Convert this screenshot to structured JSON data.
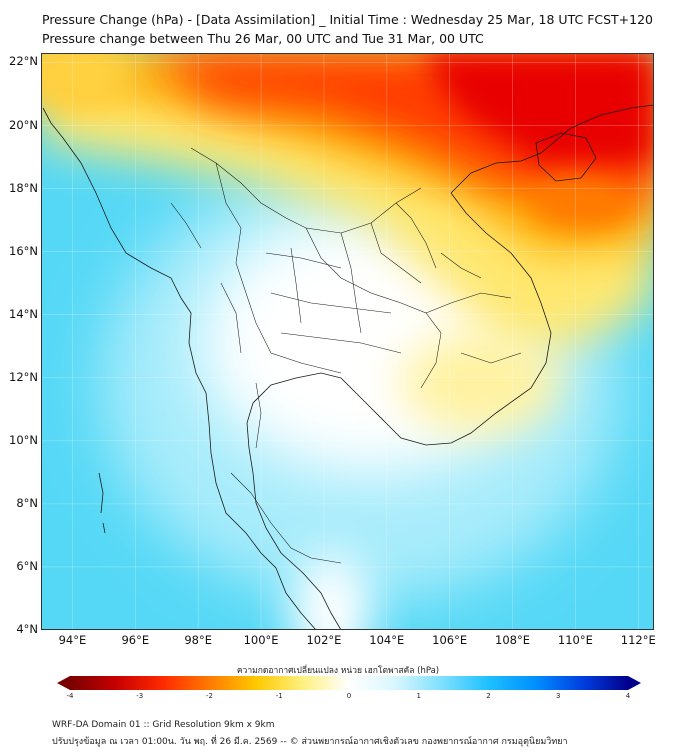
{
  "title_line1": "Pressure Change (hPa) - [Data Assimilation] _ Initial Time : Wednesday 25 Mar, 18 UTC FCST+120",
  "title_line2": "Pressure change between Thu 26 Mar, 00 UTC and Tue 31 Mar, 00 UTC",
  "map": {
    "lat_range": [
      4,
      22.3
    ],
    "lon_range": [
      93,
      112.5
    ],
    "grid": "on",
    "lat_ticks": [
      {
        "value": 4,
        "label": "4°N"
      },
      {
        "value": 6,
        "label": "6°N"
      },
      {
        "value": 8,
        "label": "8°N"
      },
      {
        "value": 10,
        "label": "10°N"
      },
      {
        "value": 12,
        "label": "12°N"
      },
      {
        "value": 14,
        "label": "14°N"
      },
      {
        "value": 16,
        "label": "16°N"
      },
      {
        "value": 18,
        "label": "18°N"
      },
      {
        "value": 20,
        "label": "20°N"
      },
      {
        "value": 22,
        "label": "22°N"
      }
    ],
    "lon_ticks": [
      {
        "value": 94,
        "label": "94°E"
      },
      {
        "value": 96,
        "label": "96°E"
      },
      {
        "value": 98,
        "label": "98°E"
      },
      {
        "value": 100,
        "label": "100°E"
      },
      {
        "value": 102,
        "label": "102°E"
      },
      {
        "value": 104,
        "label": "104°E"
      },
      {
        "value": 106,
        "label": "106°E"
      },
      {
        "value": 108,
        "label": "108°E"
      },
      {
        "value": 110,
        "label": "110°E"
      },
      {
        "value": 112,
        "label": "112°E"
      }
    ]
  },
  "colorbar": {
    "label": "ความกดอากาศเปลี่ยนแปลง หน่วย เฮกโตพาสคัล (hPa)",
    "range": [
      -4,
      4
    ],
    "ticks": [
      "-4",
      "-3",
      "-2",
      "-1",
      "0",
      "1",
      "2",
      "3",
      "4"
    ],
    "colors": [
      "#7a0000",
      "#c80000",
      "#ff2a00",
      "#ff7a00",
      "#ffc800",
      "#fff080",
      "#ffffff",
      "#d8f6ff",
      "#7ee0ff",
      "#1ec0ff",
      "#0090ff",
      "#0040e0",
      "#00008c"
    ]
  },
  "footer_line1": "WRF-DA Domain 01 :: Grid Resolution 9km x 9km",
  "footer_line2": "ปรับปรุงข้อมูล ณ เวลา 01:00น. วัน พฤ. ที่ 26 มี.ค. 2569 -- © ส่วนพยากรณ์อากาศเชิงตัวเลข กองพยากรณ์อากาศ กรมอุตุนิยมวิทยา"
}
